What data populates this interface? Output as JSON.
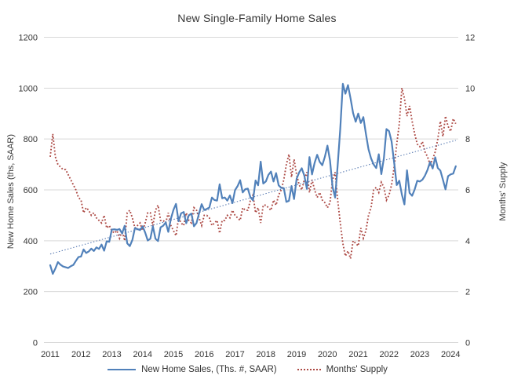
{
  "chart_data": {
    "type": "line",
    "title": "New Single-Family Home Sales",
    "frequency": "monthly",
    "start_period": "2011-01",
    "end_period": "2024-03",
    "x_axis": {
      "tick_labels": [
        "2011",
        "2012",
        "2013",
        "2014",
        "2015",
        "2016",
        "2017",
        "2018",
        "2019",
        "2020",
        "2021",
        "2022",
        "2023",
        "2024"
      ]
    },
    "left_axis": {
      "label": "New Home Sales (ths, SAAR)",
      "ticks": [
        0,
        200,
        400,
        600,
        800,
        1000,
        1200
      ],
      "range": [
        0,
        1200
      ]
    },
    "right_axis": {
      "label": "Months' Supply",
      "ticks": [
        0,
        2,
        4,
        6,
        8,
        10,
        12
      ],
      "range": [
        0,
        12
      ]
    },
    "grid": "horizontal",
    "legend_position": "bottom",
    "colors": {
      "sales_line": "#5181ba",
      "supply_line": "#ad4a45",
      "trend_line": "#5577b0",
      "gridline": "#d9d9d9",
      "text": "#333333"
    },
    "series": [
      {
        "name": "New Home Sales, (Ths. #, SAAR)",
        "axis": "left",
        "style": "solid",
        "color": "#5181ba",
        "values": [
          304,
          270,
          291,
          316,
          306,
          299,
          296,
          293,
          300,
          305,
          321,
          336,
          338,
          366,
          352,
          358,
          369,
          360,
          374,
          368,
          385,
          361,
          398,
          396,
          444,
          445,
          443,
          446,
          429,
          459,
          390,
          379,
          403,
          450,
          446,
          442,
          457,
          432,
          401,
          408,
          457,
          408,
          399,
          453,
          459,
          472,
          435,
          486,
          521,
          545,
          477,
          508,
          513,
          469,
          500,
          507,
          457,
          470,
          508,
          544,
          521,
          525,
          531,
          570,
          560,
          558,
          622,
          567,
          570,
          558,
          578,
          548,
          599,
          615,
          638,
          590,
          603,
          605,
          571,
          559,
          637,
          618,
          711,
          625,
          633,
          659,
          672,
          633,
          666,
          618,
          608,
          607,
          553,
          557,
          615,
          564,
          644,
          669,
          685,
          656,
          604,
          729,
          661,
          706,
          738,
          710,
          697,
          730,
          774,
          716,
          612,
          570,
          698,
          840,
          1017,
          978,
          1012,
          960,
          902,
          868,
          900,
          863,
          886,
          820,
          760,
          724,
          700,
          686,
          740,
          662,
          725,
          839,
          831,
          790,
          707,
          619,
          636,
          582,
          543,
          677,
          588,
          577,
          602,
          636,
          633,
          640,
          656,
          679,
          710,
          684,
          728,
          686,
          676,
          640,
          602,
          654,
          661,
          664,
          693
        ]
      },
      {
        "name": "Months' Supply",
        "axis": "right",
        "style": "dotted",
        "color": "#ad4a45",
        "values": [
          7.3,
          8.2,
          7.3,
          7.0,
          6.9,
          6.8,
          6.8,
          6.6,
          6.4,
          6.2,
          6.0,
          5.7,
          5.6,
          5.1,
          5.3,
          5.2,
          5.0,
          5.1,
          4.9,
          4.8,
          4.7,
          5.0,
          4.5,
          4.6,
          4.4,
          4.3,
          4.4,
          4.1,
          4.4,
          4.0,
          5.1,
          5.2,
          4.9,
          4.5,
          4.6,
          4.7,
          4.4,
          4.7,
          5.1,
          5.1,
          4.6,
          5.2,
          5.4,
          4.8,
          4.8,
          4.7,
          5.1,
          4.6,
          4.4,
          4.2,
          4.9,
          4.7,
          4.6,
          5.1,
          4.8,
          4.7,
          5.3,
          5.2,
          4.9,
          4.6,
          5.0,
          5.0,
          4.9,
          4.6,
          4.7,
          4.8,
          4.3,
          4.8,
          4.8,
          5.0,
          4.9,
          5.2,
          5.0,
          4.9,
          4.8,
          5.3,
          5.2,
          5.2,
          5.6,
          5.8,
          5.1,
          5.3,
          4.7,
          5.4,
          5.4,
          5.3,
          5.2,
          5.6,
          5.4,
          5.8,
          6.0,
          6.4,
          7.0,
          7.4,
          6.5,
          7.2,
          6.6,
          6.2,
          6.0,
          6.4,
          6.7,
          5.9,
          6.4,
          6.0,
          5.7,
          5.9,
          5.6,
          5.5,
          5.3,
          5.5,
          6.4,
          6.7,
          5.6,
          4.7,
          3.9,
          3.4,
          3.6,
          3.3,
          4.0,
          3.9,
          3.8,
          4.5,
          4.1,
          4.4,
          5.0,
          5.3,
          6.0,
          6.1,
          5.9,
          6.3,
          6.1,
          5.6,
          5.8,
          6.2,
          6.9,
          7.8,
          8.6,
          10.0,
          9.6,
          8.9,
          9.3,
          8.7,
          8.2,
          7.8,
          7.7,
          7.9,
          7.5,
          7.3,
          7.0,
          7.2,
          7.5,
          8.0,
          8.7,
          8.1,
          8.9,
          8.5,
          8.3,
          8.8,
          8.6
        ]
      }
    ],
    "trendline": {
      "series": "New Home Sales, (Ths. #, SAAR)",
      "axis": "left",
      "start_value": 348,
      "end_value": 795,
      "style": "dotted",
      "color": "#5577b0"
    }
  },
  "legend": {
    "sales_label": "New Home Sales, (Ths. #, SAAR)",
    "supply_label": "Months' Supply"
  }
}
